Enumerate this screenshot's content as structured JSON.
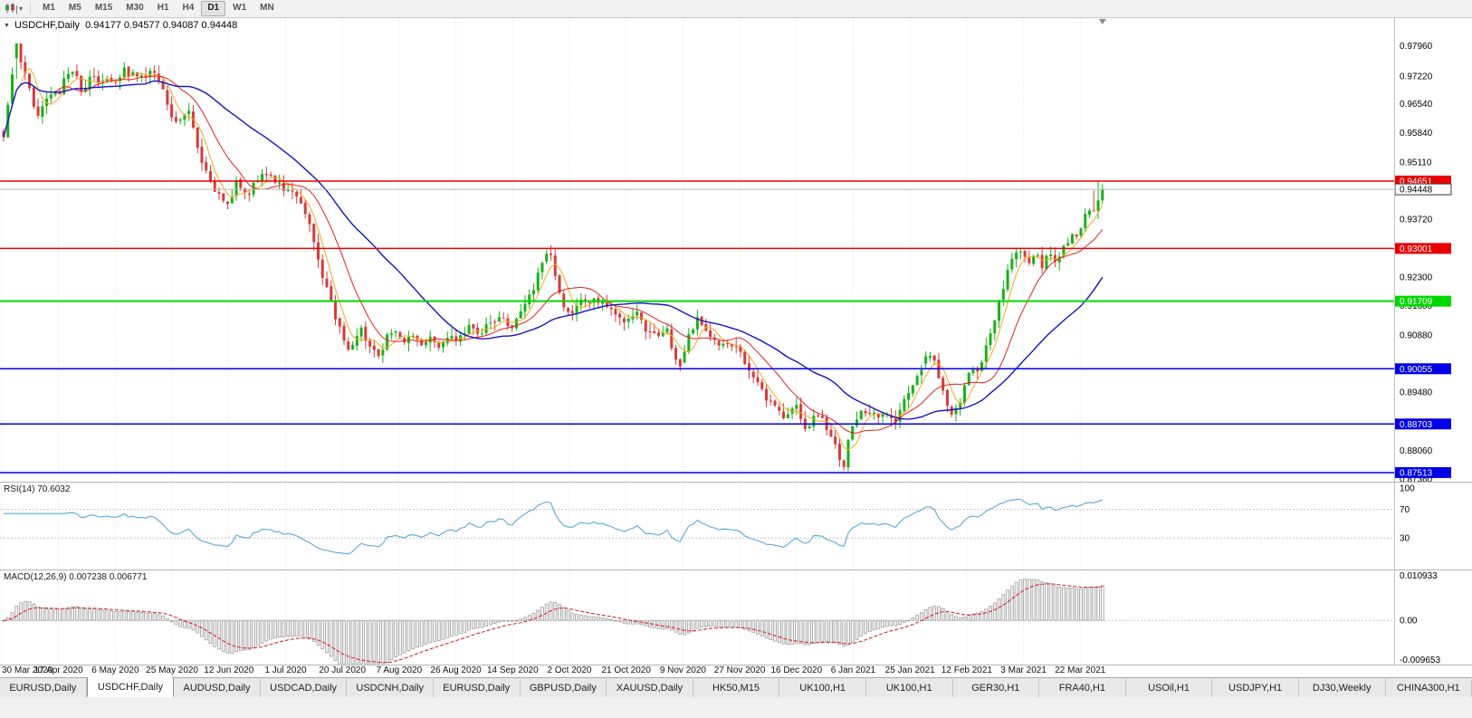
{
  "icons": {
    "one_click": "▼",
    "toolbar_caret": "▾",
    "chart_type": "candlestick-chart"
  },
  "toolbar": {
    "timeframes": [
      "M1",
      "M5",
      "M15",
      "M30",
      "H1",
      "H4",
      "D1",
      "W1",
      "MN"
    ],
    "active_timeframe": "D1"
  },
  "chart": {
    "header": {
      "symbol": "USDCHF,Daily",
      "ohlc": "0.94177 0.94577 0.94087 0.94448"
    },
    "ohlc_values": {
      "open": 0.94177,
      "high": 0.94577,
      "low": 0.94087,
      "close": 0.94448
    },
    "prev_bar": {
      "open": 0.9392,
      "close": 0.94177,
      "high": 0.94651,
      "low": 0.9372
    },
    "chart_data": {
      "type": "candlestick",
      "bars": 256,
      "price_range": {
        "top": 0.9864,
        "bottom": 0.8729
      },
      "colors": {
        "bull": "#17b217",
        "bear": "#d93a3a",
        "ma_fast": "#f5a623",
        "ma_mid": "#e52020",
        "ma_slow": "#1414c8",
        "grid": "#e6e6e6"
      },
      "levels": [
        {
          "price": 0.94651,
          "label": "0.94651",
          "color": "#e80000",
          "width": 1.5,
          "tag": "solid"
        },
        {
          "price": 0.94448,
          "label": "0.94448",
          "color": "#b8b8b8",
          "width": 1,
          "tag": "bid"
        },
        {
          "price": 0.93001,
          "label": "0.93001",
          "color": "#e80000",
          "width": 1.5,
          "tag": "solid"
        },
        {
          "price": 0.91709,
          "label": "0.91709",
          "color": "#00d800",
          "width": 2,
          "tag": "solid"
        },
        {
          "price": 0.90055,
          "label": "0.90055",
          "color": "#0000e8",
          "width": 1.5,
          "tag": "solid"
        },
        {
          "price": 0.88703,
          "label": "0.88703",
          "color": "#0000e8",
          "width": 1.5,
          "tag": "solid"
        },
        {
          "price": 0.87513,
          "label": "0.87513",
          "color": "#0000e8",
          "width": 1.5,
          "tag": "solid"
        }
      ],
      "axis_labels": [
        "0.97960",
        "0.97220",
        "0.96540",
        "0.95840",
        "0.95110",
        "0.93720",
        "0.92300",
        "0.91600",
        "0.90880",
        "0.89480",
        "0.88060",
        "0.87360"
      ],
      "dates": [
        "30 Mar 2020",
        "17 Apr 2020",
        "6 May 2020",
        "25 May 2020",
        "12 Jun 2020",
        "1 Jul 2020",
        "20 Jul 2020",
        "7 Aug 2020",
        "26 Aug 2020",
        "14 Sep 2020",
        "2 Oct 2020",
        "21 Oct 2020",
        "9 Nov 2020",
        "27 Nov 2020",
        "16 Dec 2020",
        "6 Jan 2021",
        "25 Jan 2021",
        "12 Feb 2021",
        "3 Mar 2021",
        "22 Mar 2021"
      ],
      "trend_anchors": [
        [
          0.0,
          0.956
        ],
        [
          0.006,
          0.968
        ],
        [
          0.012,
          0.979
        ],
        [
          0.02,
          0.9715
        ],
        [
          0.03,
          0.963
        ],
        [
          0.042,
          0.97
        ],
        [
          0.05,
          0.967
        ],
        [
          0.06,
          0.9745
        ],
        [
          0.07,
          0.969
        ],
        [
          0.082,
          0.973
        ],
        [
          0.095,
          0.9705
        ],
        [
          0.11,
          0.974
        ],
        [
          0.122,
          0.9715
        ],
        [
          0.135,
          0.973
        ],
        [
          0.148,
          0.966
        ],
        [
          0.158,
          0.961
        ],
        [
          0.168,
          0.963
        ],
        [
          0.18,
          0.952
        ],
        [
          0.192,
          0.9455
        ],
        [
          0.202,
          0.9408
        ],
        [
          0.212,
          0.9465
        ],
        [
          0.222,
          0.9445
        ],
        [
          0.233,
          0.9478
        ],
        [
          0.245,
          0.947
        ],
        [
          0.259,
          0.944
        ],
        [
          0.27,
          0.9398
        ],
        [
          0.28,
          0.9345
        ],
        [
          0.29,
          0.9235
        ],
        [
          0.299,
          0.915
        ],
        [
          0.308,
          0.9098
        ],
        [
          0.316,
          0.9052
        ],
        [
          0.324,
          0.9108
        ],
        [
          0.332,
          0.9058
        ],
        [
          0.34,
          0.9032
        ],
        [
          0.348,
          0.9082
        ],
        [
          0.356,
          0.9108
        ],
        [
          0.364,
          0.9062
        ],
        [
          0.372,
          0.909
        ],
        [
          0.38,
          0.9052
        ],
        [
          0.388,
          0.9082
        ],
        [
          0.396,
          0.904
        ],
        [
          0.404,
          0.9088
        ],
        [
          0.413,
          0.9068
        ],
        [
          0.422,
          0.9105
        ],
        [
          0.432,
          0.9085
        ],
        [
          0.442,
          0.9112
        ],
        [
          0.452,
          0.913
        ],
        [
          0.462,
          0.9102
        ],
        [
          0.472,
          0.914
        ],
        [
          0.482,
          0.9185
        ],
        [
          0.492,
          0.9282
        ],
        [
          0.497,
          0.9293
        ],
        [
          0.503,
          0.921
        ],
        [
          0.51,
          0.9165
        ],
        [
          0.516,
          0.915
        ],
        [
          0.524,
          0.9178
        ],
        [
          0.534,
          0.9168
        ],
        [
          0.544,
          0.9175
        ],
        [
          0.554,
          0.914
        ],
        [
          0.567,
          0.9124
        ],
        [
          0.576,
          0.9142
        ],
        [
          0.585,
          0.91
        ],
        [
          0.595,
          0.9082
        ],
        [
          0.604,
          0.9092
        ],
        [
          0.612,
          0.903
        ],
        [
          0.617,
          0.9004
        ],
        [
          0.624,
          0.908
        ],
        [
          0.632,
          0.9122
        ],
        [
          0.64,
          0.9108
        ],
        [
          0.65,
          0.907
        ],
        [
          0.66,
          0.9048
        ],
        [
          0.67,
          0.906
        ],
        [
          0.68,
          0.9002
        ],
        [
          0.69,
          0.8952
        ],
        [
          0.7,
          0.892
        ],
        [
          0.71,
          0.888
        ],
        [
          0.721,
          0.8902
        ],
        [
          0.73,
          0.8862
        ],
        [
          0.74,
          0.8905
        ],
        [
          0.75,
          0.8848
        ],
        [
          0.758,
          0.88
        ],
        [
          0.7645,
          0.8758
        ],
        [
          0.772,
          0.8868
        ],
        [
          0.78,
          0.8892
        ],
        [
          0.79,
          0.8878
        ],
        [
          0.8,
          0.8898
        ],
        [
          0.81,
          0.8878
        ],
        [
          0.82,
          0.8922
        ],
        [
          0.83,
          0.8985
        ],
        [
          0.8395,
          0.9042
        ],
        [
          0.848,
          0.9015
        ],
        [
          0.855,
          0.8948
        ],
        [
          0.862,
          0.889
        ],
        [
          0.87,
          0.8925
        ],
        [
          0.878,
          0.8985
        ],
        [
          0.886,
          0.9005
        ],
        [
          0.894,
          0.9065
        ],
        [
          0.902,
          0.9125
        ],
        [
          0.91,
          0.9205
        ],
        [
          0.918,
          0.9285
        ],
        [
          0.927,
          0.9302
        ],
        [
          0.934,
          0.9268
        ],
        [
          0.94,
          0.9298
        ],
        [
          0.946,
          0.9262
        ],
        [
          0.952,
          0.929
        ],
        [
          0.958,
          0.9272
        ],
        [
          0.964,
          0.9302
        ],
        [
          0.97,
          0.9325
        ],
        [
          0.978,
          0.9332
        ],
        [
          0.985,
          0.9385
        ],
        [
          0.992,
          0.9418
        ],
        [
          1.0,
          0.9445
        ]
      ],
      "key_bars": [
        {
          "frac": 0.012,
          "high": 0.9796
        },
        {
          "frac": 0.495,
          "high": 0.9298
        },
        {
          "frac": 0.617,
          "low": 0.8999
        },
        {
          "frac": 0.7645,
          "low": 0.8756
        },
        {
          "frac": 0.8395,
          "high": 0.9048
        }
      ]
    }
  },
  "rsi": {
    "label": "RSI(14) 70.6032",
    "value": 70.6032,
    "period": 14,
    "axis_labels": [
      "100",
      "70",
      "30"
    ],
    "overbought": 70,
    "oversold": 30,
    "line_color": "#58a8dc"
  },
  "macd": {
    "label": "MACD(12,26,9) 0.007238 0.006771",
    "values": [
      0.007238,
      0.006771
    ],
    "axis_labels": [
      "0.010933",
      "0.00",
      "-0.009653"
    ],
    "axis_max": 0.010933,
    "axis_min": -0.009653,
    "histogram_color": "#a0a0a0",
    "signal_color": "#d81818"
  },
  "tabs": {
    "active_index": 1,
    "items": [
      "EURUSD,Daily",
      "USDCHF,Daily",
      "AUDUSD,Daily",
      "USDCAD,Daily",
      "USDCNH,Daily",
      "EURUSD,Daily",
      "GBPUSD,Daily",
      "XAUUSD,Daily",
      "HK50,M15",
      "UK100,H1",
      "UK100,H1",
      "GER30,H1",
      "FRA40,H1",
      "USOil,H1",
      "USDJPY,H1",
      "DJ30,Weekly",
      "CHINA300,H1"
    ]
  }
}
